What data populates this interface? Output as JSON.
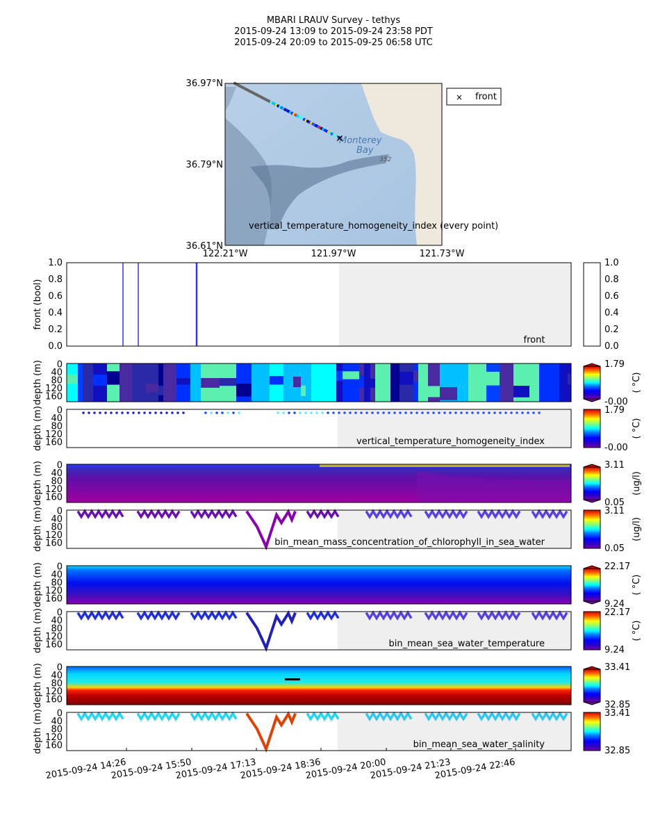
{
  "header": {
    "title": "MBARI LRAUV Survey - tethys",
    "line_pdt": "2015-09-24 13:09  to  2015-09-24 23:58 PDT",
    "line_utc": "2015-09-24 20:09  to  2015-09-25 06:58 UTC"
  },
  "map": {
    "lat_labels": [
      "36.97°N",
      "36.79°N",
      "36.61°N"
    ],
    "lon_labels": [
      "122.21°W",
      "121.97°W",
      "121.73°W"
    ],
    "place_name_1": "Monterey",
    "place_name_2": "Bay",
    "depth_mark": "352",
    "caption": "vertical_temperature_homogeneity_index (every point)",
    "legend_label": "front",
    "legend_marker": "×",
    "front_marker": "✕"
  },
  "time_axis": {
    "ticks": [
      "2015-09-24 14:26",
      "2015-09-24 15:50",
      "2015-09-24 17:13",
      "2015-09-24 18:36",
      "2015-09-24 20:00",
      "2015-09-24 21:23",
      "2015-09-24 22:46"
    ]
  },
  "chart_data": [
    {
      "type": "line",
      "panel": "front",
      "ylabel": "front (bool)",
      "label": "front",
      "ylim": [
        0,
        1
      ],
      "yticks": [
        "0.0",
        "0.2",
        "0.4",
        "0.6",
        "0.8",
        "1.0"
      ],
      "front_times": [
        "2015-09-24 14:21",
        "2015-09-24 14:41",
        "2015-09-24 15:58"
      ],
      "colorbar": {
        "min": "0.0",
        "max": "1.0",
        "ticks": [
          "0.0",
          "0.2",
          "0.4",
          "0.6",
          "0.8",
          "1.0"
        ]
      }
    },
    {
      "type": "heatmap",
      "panel": "vertical_temperature_homogeneity_index",
      "label": "vertical_temperature_homogeneity_index",
      "ylabel": "depth (m)",
      "unit": "( °C)",
      "colorbar": {
        "min": "-0.00",
        "max": "1.79"
      },
      "yticks": [
        "0",
        "40",
        "80",
        "120",
        "160"
      ]
    },
    {
      "type": "heatmap",
      "panel": "bin_mean_mass_concentration_of_chlorophyll_in_sea_water",
      "label": "bin_mean_mass_concentration_of_chlorophyll_in_sea_water",
      "ylabel": "depth (m)",
      "unit": "(ug/l)",
      "colorbar": {
        "min": "0.05",
        "max": "3.11"
      },
      "yticks": [
        "0",
        "40",
        "80",
        "120",
        "160"
      ]
    },
    {
      "type": "heatmap",
      "panel": "bin_mean_sea_water_temperature",
      "label": "bin_mean_sea_water_temperature",
      "ylabel": "depth (m)",
      "unit": "( °C)",
      "colorbar": {
        "min": "9.24",
        "max": "22.17"
      },
      "yticks": [
        "0",
        "40",
        "80",
        "120",
        "160"
      ]
    },
    {
      "type": "heatmap",
      "panel": "bin_mean_sea_water_salinity",
      "label": "bin_mean_sea_water_salinity",
      "ylabel": "depth (m)",
      "unit": "",
      "colorbar": {
        "min": "32.85",
        "max": "33.41"
      },
      "yticks": [
        "0",
        "40",
        "80",
        "120",
        "160"
      ]
    }
  ]
}
